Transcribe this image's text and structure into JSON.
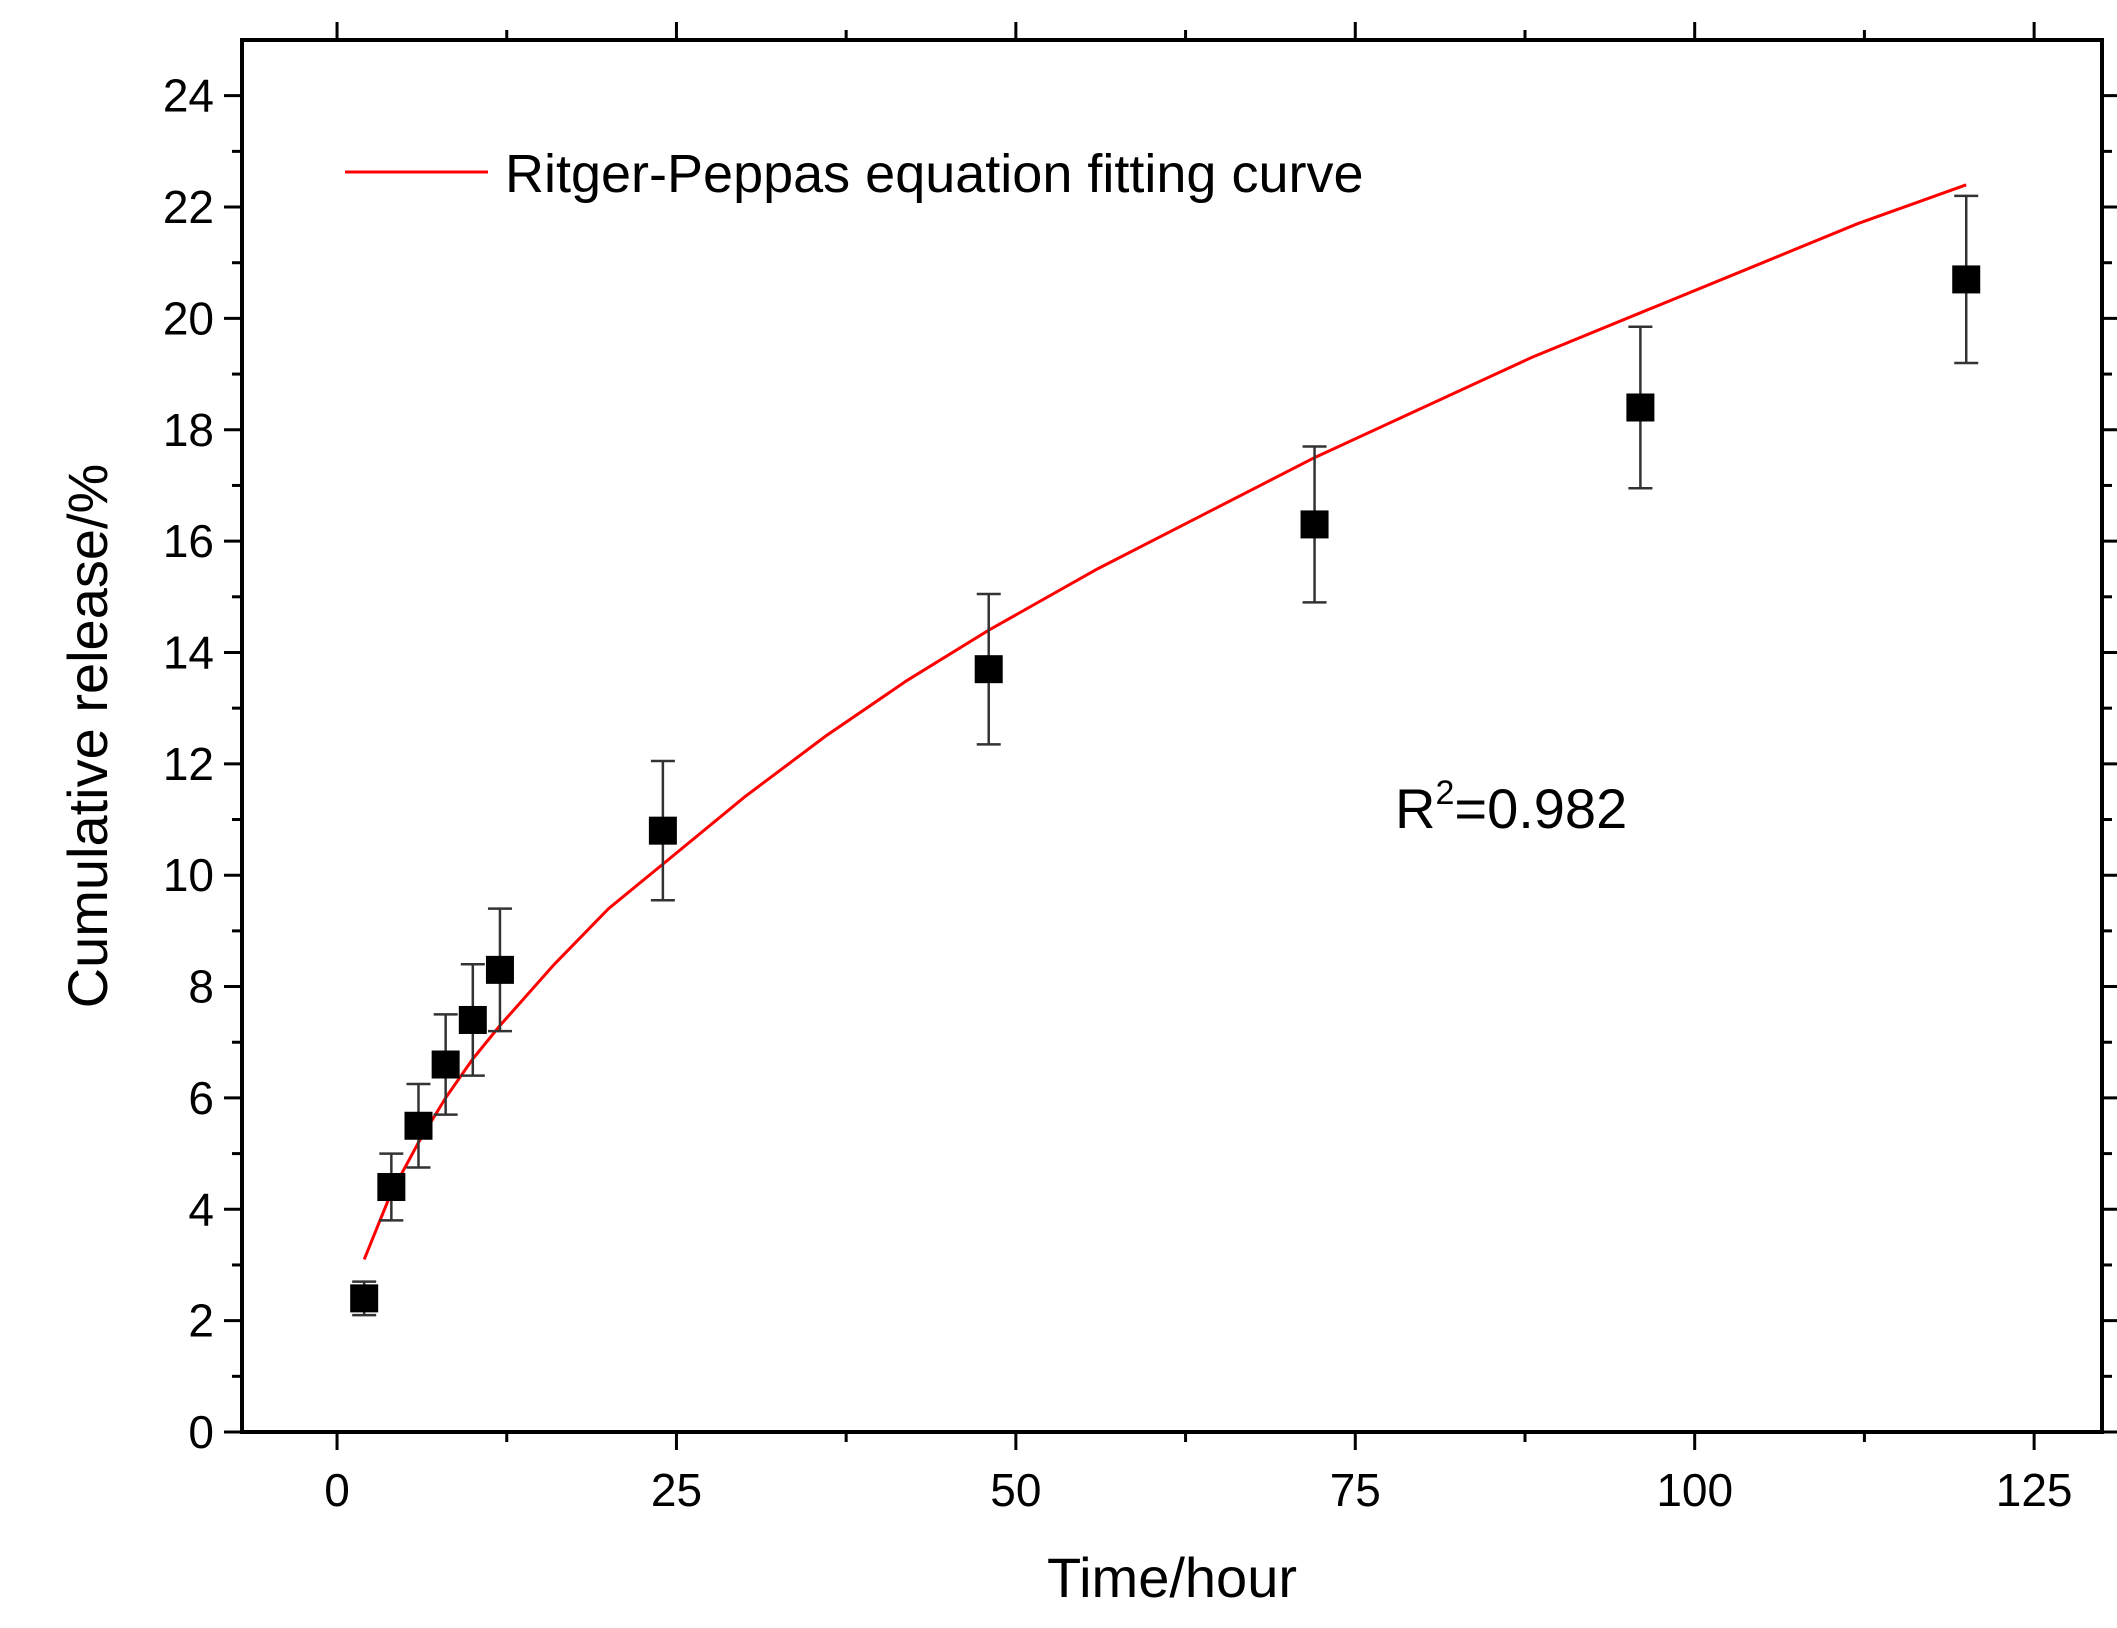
{
  "chart_data": {
    "type": "scatter",
    "title": "",
    "xlabel": "Time/hour",
    "ylabel": "Cumulative release/%",
    "xlim": [
      -7,
      130
    ],
    "ylim": [
      0,
      25
    ],
    "x_ticks": [
      0,
      25,
      50,
      75,
      100,
      125
    ],
    "y_ticks": [
      0,
      2,
      4,
      6,
      8,
      10,
      12,
      14,
      16,
      18,
      20,
      22,
      24
    ],
    "grid": false,
    "legend": {
      "placement": "top-left",
      "entries": [
        "Ritger-Peppas equation fitting curve"
      ]
    },
    "series": [
      {
        "kind": "points-with-error",
        "marker": "square",
        "color": "#000000",
        "x": [
          2,
          4,
          6,
          8,
          10,
          12,
          24,
          48,
          72,
          96,
          120
        ],
        "y": [
          2.4,
          4.4,
          5.5,
          6.6,
          7.4,
          8.3,
          10.8,
          13.7,
          16.3,
          18.4,
          20.7
        ],
        "error": [
          0.3,
          0.6,
          0.75,
          0.9,
          1.0,
          1.1,
          1.25,
          1.35,
          1.4,
          1.45,
          1.5
        ]
      },
      {
        "kind": "line",
        "name": "Ritger-Peppas equation fitting curve",
        "color": "#ff0000",
        "x": [
          2,
          4,
          6,
          8,
          10,
          12,
          16,
          20,
          24,
          30,
          36,
          42,
          48,
          56,
          64,
          72,
          80,
          88,
          96,
          104,
          112,
          120
        ],
        "y": [
          3.1,
          4.3,
          5.2,
          6.0,
          6.7,
          7.3,
          8.4,
          9.4,
          10.2,
          11.4,
          12.5,
          13.5,
          14.4,
          15.5,
          16.5,
          17.5,
          18.4,
          19.3,
          20.1,
          20.9,
          21.7,
          22.4
        ]
      }
    ],
    "annotations": [
      {
        "text_base": "R",
        "text_sup": "2",
        "text_rest": "=0.982"
      }
    ]
  }
}
